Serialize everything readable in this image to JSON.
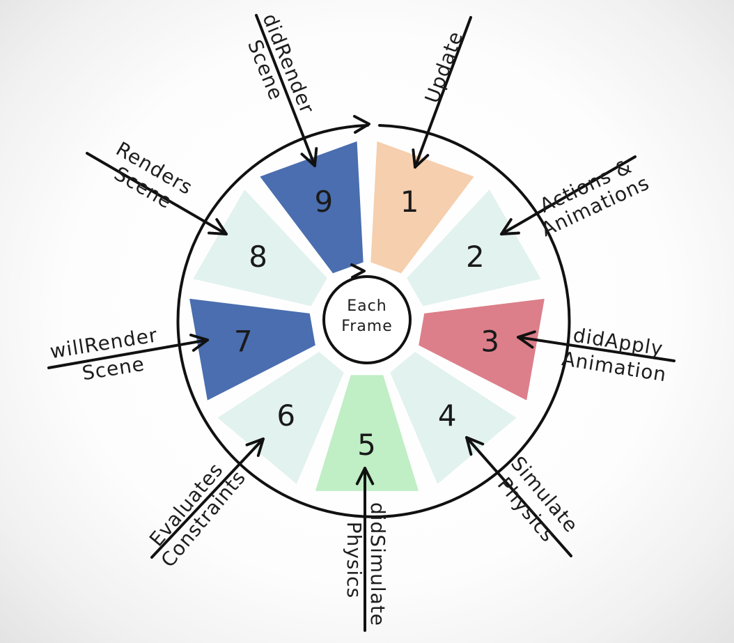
{
  "center": {
    "line1": "Each",
    "line2": "Frame"
  },
  "segments": [
    {
      "number": "1",
      "color": "#f5cfae"
    },
    {
      "number": "2",
      "color": "#e2f2ee"
    },
    {
      "number": "3",
      "color": "#dc7f8a"
    },
    {
      "number": "4",
      "color": "#e2f2ee"
    },
    {
      "number": "5",
      "color": "#c0eec5"
    },
    {
      "number": "6",
      "color": "#e2f2ee"
    },
    {
      "number": "7",
      "color": "#4a6eaf"
    },
    {
      "number": "8",
      "color": "#e2f2ee"
    },
    {
      "number": "9",
      "color": "#4a6eaf"
    }
  ],
  "labels": {
    "update": {
      "line1": "Update"
    },
    "actions": {
      "line1": "Actions &",
      "line2": "Animations"
    },
    "did_apply": {
      "line1": "didApply",
      "line2": "Animation"
    },
    "simulate": {
      "line1": "Simulate",
      "line2": "Physics"
    },
    "did_simulate": {
      "line1": "didSimulate",
      "line2": "Physics"
    },
    "evaluates": {
      "line1": "Evaluates",
      "line2": "Constraints"
    },
    "will_render": {
      "line1": "willRender",
      "line2": "Scene"
    },
    "renders": {
      "line1": "Renders",
      "line2": "Scene"
    },
    "did_render": {
      "line1": "didRender",
      "line2": "Scene"
    }
  }
}
